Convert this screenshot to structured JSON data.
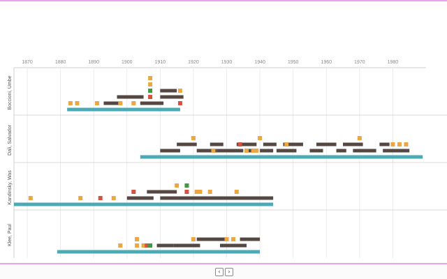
{
  "colors": {
    "life": "#4aaab5",
    "period": "#554843",
    "event_orange": "#eca744",
    "event_red": "#d65140",
    "event_green": "#3f9a43",
    "grid": "#e6e6e6",
    "frame": "#cfcfcf"
  },
  "pager": {
    "prev_label": "‹",
    "next_label": "›"
  },
  "chart_data": {
    "type": "timeline",
    "xlim": [
      1866,
      1990
    ],
    "ticks": [
      1870,
      1880,
      1890,
      1900,
      1910,
      1920,
      1930,
      1940,
      1950,
      1960,
      1970,
      1980
    ],
    "grid": true,
    "artists": [
      {
        "name": "Boccioni, Umbe",
        "life": [
          1882,
          1916
        ],
        "periods": [
          {
            "start": 1893,
            "end": 1898,
            "row": 1
          },
          {
            "start": 1904,
            "end": 1911,
            "row": 1
          },
          {
            "start": 1897,
            "end": 1905,
            "row": 2
          },
          {
            "start": 1910,
            "end": 1917,
            "row": 2
          },
          {
            "start": 1910,
            "end": 1915,
            "row": 3
          }
        ],
        "events": [
          {
            "year": 1883,
            "row": 1,
            "kind": "orange"
          },
          {
            "year": 1885,
            "row": 1,
            "kind": "orange"
          },
          {
            "year": 1891,
            "row": 1,
            "kind": "orange"
          },
          {
            "year": 1898,
            "row": 1,
            "kind": "orange"
          },
          {
            "year": 1902,
            "row": 1,
            "kind": "orange"
          },
          {
            "year": 1916,
            "row": 1,
            "kind": "red"
          },
          {
            "year": 1907,
            "row": 2,
            "kind": "red"
          },
          {
            "year": 1907,
            "row": 3,
            "kind": "green"
          },
          {
            "year": 1916,
            "row": 3,
            "kind": "orange"
          },
          {
            "year": 1907,
            "row": 4,
            "kind": "orange"
          },
          {
            "year": 1907,
            "row": 5,
            "kind": "orange"
          }
        ]
      },
      {
        "name": "Dalí, Salvador",
        "life": [
          1904,
          1989
        ],
        "periods": [
          {
            "start": 1910,
            "end": 1916,
            "row": 1
          },
          {
            "start": 1921,
            "end": 1927,
            "row": 1
          },
          {
            "start": 1927,
            "end": 1935,
            "row": 1
          },
          {
            "start": 1936,
            "end": 1938,
            "row": 1
          },
          {
            "start": 1940,
            "end": 1944,
            "row": 1
          },
          {
            "start": 1945,
            "end": 1951,
            "row": 1
          },
          {
            "start": 1955,
            "end": 1959,
            "row": 1
          },
          {
            "start": 1963,
            "end": 1966,
            "row": 1
          },
          {
            "start": 1968,
            "end": 1975,
            "row": 1
          },
          {
            "start": 1977,
            "end": 1985,
            "row": 1
          },
          {
            "start": 1915,
            "end": 1921,
            "row": 2
          },
          {
            "start": 1925,
            "end": 1929,
            "row": 2
          },
          {
            "start": 1933,
            "end": 1939,
            "row": 2
          },
          {
            "start": 1941,
            "end": 1945,
            "row": 2
          },
          {
            "start": 1947,
            "end": 1953,
            "row": 2
          },
          {
            "start": 1957,
            "end": 1963,
            "row": 2
          },
          {
            "start": 1965,
            "end": 1971,
            "row": 2
          },
          {
            "start": 1976,
            "end": 1979,
            "row": 2
          }
        ],
        "events": [
          {
            "year": 1926,
            "row": 1,
            "kind": "orange"
          },
          {
            "year": 1936,
            "row": 1,
            "kind": "orange"
          },
          {
            "year": 1938,
            "row": 1,
            "kind": "orange"
          },
          {
            "year": 1939,
            "row": 1,
            "kind": "orange"
          },
          {
            "year": 1934,
            "row": 2,
            "kind": "red"
          },
          {
            "year": 1948,
            "row": 2,
            "kind": "orange"
          },
          {
            "year": 1980,
            "row": 2,
            "kind": "orange"
          },
          {
            "year": 1982,
            "row": 2,
            "kind": "orange"
          },
          {
            "year": 1984,
            "row": 2,
            "kind": "orange"
          },
          {
            "year": 1920,
            "row": 3,
            "kind": "orange"
          },
          {
            "year": 1940,
            "row": 3,
            "kind": "orange"
          },
          {
            "year": 1970,
            "row": 3,
            "kind": "orange"
          }
        ]
      },
      {
        "name": "Kandinsky, Was",
        "life": [
          1866,
          1944
        ],
        "periods": [
          {
            "start": 1900,
            "end": 1908,
            "row": 1
          },
          {
            "start": 1910,
            "end": 1944,
            "row": 1
          },
          {
            "start": 1906,
            "end": 1915,
            "row": 2
          }
        ],
        "events": [
          {
            "year": 1871,
            "row": 1,
            "kind": "orange"
          },
          {
            "year": 1886,
            "row": 1,
            "kind": "orange"
          },
          {
            "year": 1892,
            "row": 1,
            "kind": "red"
          },
          {
            "year": 1896,
            "row": 1,
            "kind": "orange"
          },
          {
            "year": 1902,
            "row": 2,
            "kind": "red"
          },
          {
            "year": 1918,
            "row": 2,
            "kind": "red"
          },
          {
            "year": 1921,
            "row": 2,
            "kind": "orange"
          },
          {
            "year": 1922,
            "row": 2,
            "kind": "orange"
          },
          {
            "year": 1925,
            "row": 2,
            "kind": "orange"
          },
          {
            "year": 1933,
            "row": 2,
            "kind": "orange"
          },
          {
            "year": 1915,
            "row": 3,
            "kind": "orange"
          },
          {
            "year": 1918,
            "row": 3,
            "kind": "green"
          }
        ]
      },
      {
        "name": "Klee, Paul",
        "life": [
          1879,
          1940
        ],
        "periods": [
          {
            "start": 1909,
            "end": 1914,
            "row": 1
          },
          {
            "start": 1914,
            "end": 1922,
            "row": 1
          },
          {
            "start": 1928,
            "end": 1936,
            "row": 1
          },
          {
            "start": 1921,
            "end": 1930,
            "row": 2
          },
          {
            "start": 1934,
            "end": 1940,
            "row": 2
          }
        ],
        "events": [
          {
            "year": 1898,
            "row": 1,
            "kind": "orange"
          },
          {
            "year": 1903,
            "row": 1,
            "kind": "orange"
          },
          {
            "year": 1905,
            "row": 1,
            "kind": "orange"
          },
          {
            "year": 1906,
            "row": 1,
            "kind": "red"
          },
          {
            "year": 1907,
            "row": 1,
            "kind": "green"
          },
          {
            "year": 1903,
            "row": 2,
            "kind": "orange"
          },
          {
            "year": 1920,
            "row": 2,
            "kind": "orange"
          },
          {
            "year": 1930,
            "row": 2,
            "kind": "orange"
          },
          {
            "year": 1932,
            "row": 2,
            "kind": "orange"
          }
        ]
      }
    ]
  }
}
